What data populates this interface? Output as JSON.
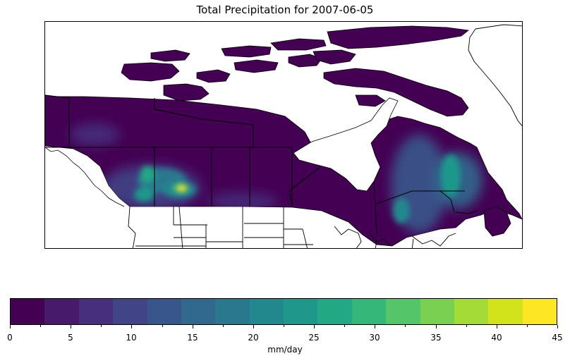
{
  "title": "Total Precipitation for 2007-06-05",
  "colorbar": {
    "label": "mm/day",
    "ticks": [
      "0",
      "5",
      "10",
      "15",
      "20",
      "25",
      "30",
      "35",
      "40",
      "45"
    ],
    "levels": [
      0,
      2.5,
      5,
      7.5,
      10,
      12.5,
      15,
      17.5,
      20,
      22.5,
      25,
      27.5,
      30,
      32.5,
      35,
      37.5,
      40,
      42.5,
      45
    ],
    "colors": [
      "#440154",
      "#481a6c",
      "#472f7d",
      "#414487",
      "#39568c",
      "#31688e",
      "#2a788e",
      "#23888e",
      "#1f988b",
      "#22a884",
      "#35b779",
      "#54c568",
      "#7ad151",
      "#a5db36",
      "#d2e21b",
      "#fde725"
    ]
  },
  "map": {
    "base_color": "#440154",
    "border_color": "#000000",
    "ocean_color": "#ffffff"
  }
}
